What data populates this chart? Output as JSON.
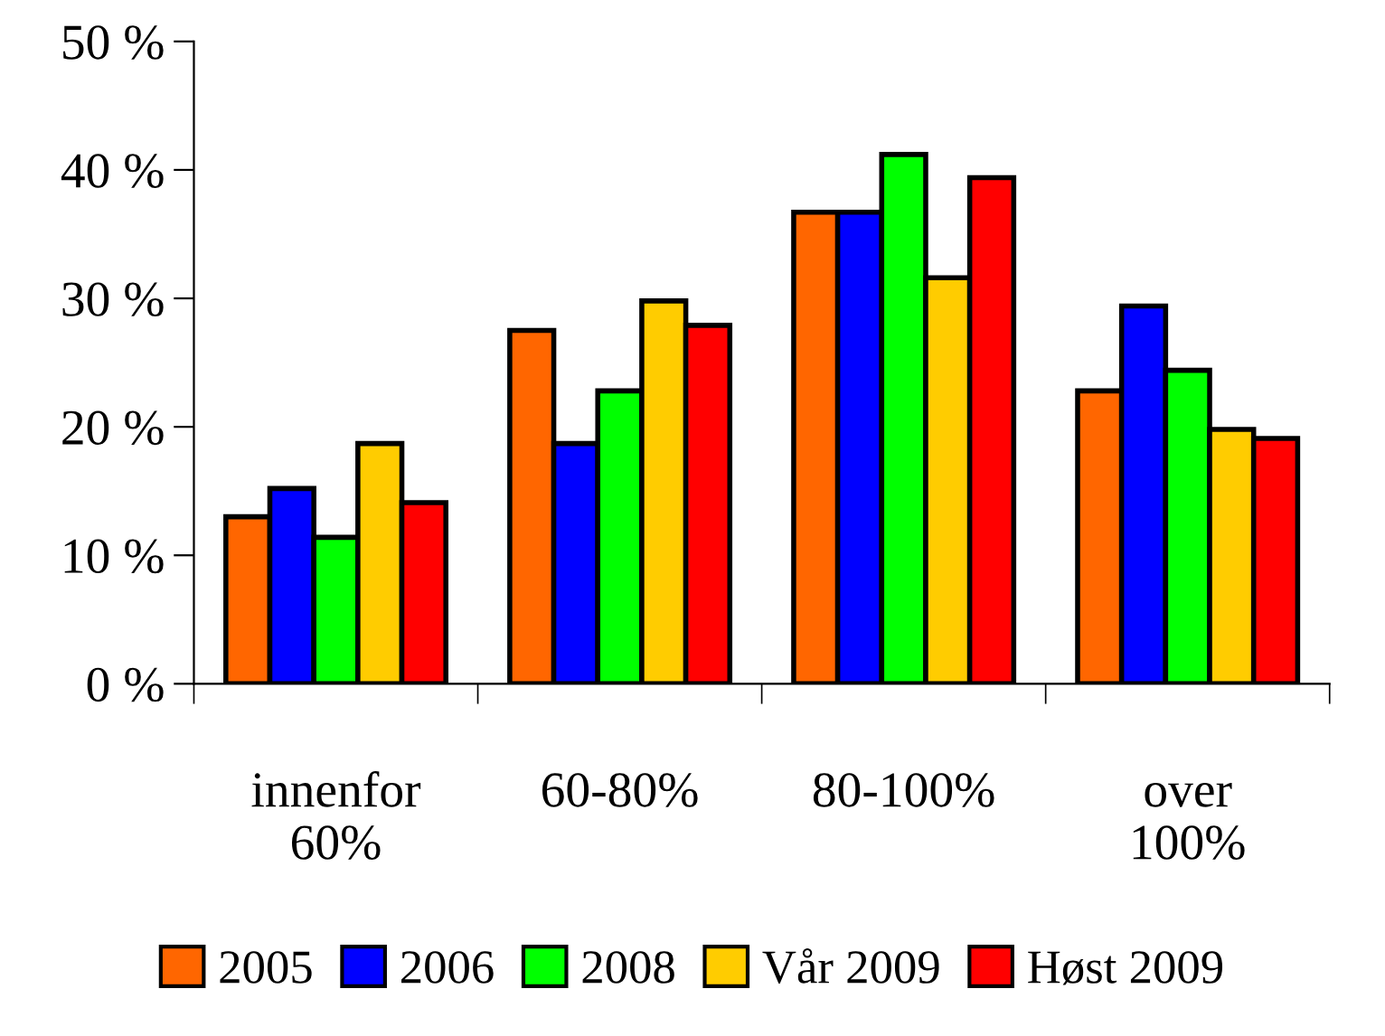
{
  "chart_data": {
    "type": "bar",
    "categories": [
      "innenfor\n60%",
      "60-80%",
      "80-100%",
      "over\n100%"
    ],
    "series": [
      {
        "name": "2005",
        "color": "#ff6600",
        "values": [
          13.0,
          27.5,
          36.7,
          22.8
        ]
      },
      {
        "name": "2006",
        "color": "#0000ff",
        "values": [
          15.2,
          18.7,
          36.7,
          29.4
        ]
      },
      {
        "name": "2008",
        "color": "#00ff00",
        "values": [
          11.4,
          22.8,
          41.2,
          24.4
        ]
      },
      {
        "name": "Vår 2009",
        "color": "#ffcc00",
        "values": [
          18.7,
          29.8,
          31.6,
          19.8
        ]
      },
      {
        "name": "Høst 2009",
        "color": "#ff0000",
        "values": [
          14.1,
          27.9,
          39.4,
          19.1
        ]
      }
    ],
    "ylim": [
      0,
      50
    ],
    "yticks": [
      {
        "value": 0,
        "label": "0 %"
      },
      {
        "value": 10,
        "label": "10 %"
      },
      {
        "value": 20,
        "label": "20 %"
      },
      {
        "value": 30,
        "label": "30 %"
      },
      {
        "value": 40,
        "label": "40 %"
      },
      {
        "value": 50,
        "label": "50 %"
      }
    ],
    "grid": false,
    "legend": "bottom"
  }
}
